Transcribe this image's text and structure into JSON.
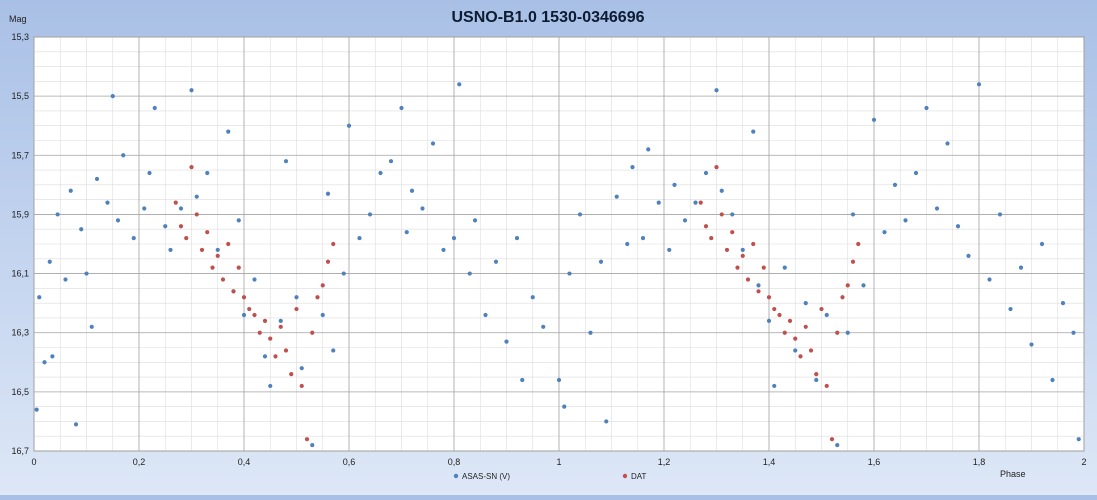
{
  "chart_data": {
    "type": "scatter",
    "title": "USNO-B1.0 1530-0346696",
    "ylabel": "Mag",
    "xlabel": "Phase",
    "xlim": [
      0,
      2
    ],
    "ylim": [
      15.3,
      16.7
    ],
    "y_inverted": true,
    "x_ticks": [
      0,
      0.2,
      0.4,
      0.6,
      0.8,
      1,
      1.2,
      1.4,
      1.6,
      1.8,
      2
    ],
    "x_tick_labels": [
      "0",
      "0,2",
      "0,4",
      "0,6",
      "0,8",
      "1",
      "1,2",
      "1,4",
      "1,6",
      "1,8",
      "2"
    ],
    "y_ticks": [
      15.3,
      15.5,
      15.7,
      15.9,
      16.1,
      16.3,
      16.5,
      16.7
    ],
    "y_tick_labels": [
      "15,3",
      "15,5",
      "15,7",
      "15,9",
      "16,1",
      "16,3",
      "16,5",
      "16,7"
    ],
    "grid": true,
    "legend_position": "bottom",
    "series": [
      {
        "name": "ASAS-SN (V)",
        "color": "#4f81bd",
        "points": [
          [
            0.005,
            16.56
          ],
          [
            0.01,
            16.18
          ],
          [
            0.02,
            16.4
          ],
          [
            0.03,
            16.06
          ],
          [
            0.035,
            16.38
          ],
          [
            0.045,
            15.9
          ],
          [
            0.06,
            16.12
          ],
          [
            0.07,
            15.82
          ],
          [
            0.08,
            16.61
          ],
          [
            0.09,
            15.95
          ],
          [
            0.1,
            16.1
          ],
          [
            0.11,
            16.28
          ],
          [
            0.12,
            15.78
          ],
          [
            0.14,
            15.86
          ],
          [
            0.15,
            15.5
          ],
          [
            0.16,
            15.92
          ],
          [
            0.17,
            15.7
          ],
          [
            0.19,
            15.98
          ],
          [
            0.21,
            15.88
          ],
          [
            0.22,
            15.76
          ],
          [
            0.23,
            15.54
          ],
          [
            0.25,
            15.94
          ],
          [
            0.26,
            16.02
          ],
          [
            0.28,
            15.88
          ],
          [
            0.3,
            15.48
          ],
          [
            0.31,
            15.84
          ],
          [
            0.33,
            15.76
          ],
          [
            0.35,
            16.02
          ],
          [
            0.37,
            15.62
          ],
          [
            0.38,
            16.16
          ],
          [
            0.39,
            15.92
          ],
          [
            0.4,
            16.24
          ],
          [
            0.42,
            16.12
          ],
          [
            0.44,
            16.38
          ],
          [
            0.45,
            16.48
          ],
          [
            0.47,
            16.26
          ],
          [
            0.48,
            15.72
          ],
          [
            0.5,
            16.18
          ],
          [
            0.51,
            16.42
          ],
          [
            0.53,
            16.68
          ],
          [
            0.55,
            16.24
          ],
          [
            0.56,
            15.83
          ],
          [
            0.57,
            16.36
          ],
          [
            0.59,
            16.1
          ],
          [
            0.6,
            15.6
          ],
          [
            0.62,
            15.98
          ],
          [
            0.64,
            15.9
          ],
          [
            0.66,
            15.76
          ],
          [
            0.68,
            15.72
          ],
          [
            0.7,
            15.54
          ],
          [
            0.71,
            15.96
          ],
          [
            0.72,
            15.82
          ],
          [
            0.74,
            15.88
          ],
          [
            0.76,
            15.66
          ],
          [
            0.78,
            16.02
          ],
          [
            0.8,
            15.98
          ],
          [
            0.81,
            15.46
          ],
          [
            0.83,
            16.1
          ],
          [
            0.84,
            15.92
          ],
          [
            0.86,
            16.24
          ],
          [
            0.88,
            16.06
          ],
          [
            0.9,
            16.33
          ],
          [
            0.92,
            15.98
          ],
          [
            0.93,
            16.46
          ],
          [
            0.95,
            16.18
          ],
          [
            0.97,
            16.28
          ],
          [
            1.0,
            16.46
          ],
          [
            1.01,
            16.55
          ],
          [
            1.02,
            16.1
          ],
          [
            1.04,
            15.9
          ],
          [
            1.06,
            16.3
          ],
          [
            1.08,
            16.06
          ],
          [
            1.09,
            16.6
          ],
          [
            1.11,
            15.84
          ],
          [
            1.13,
            16.0
          ],
          [
            1.14,
            15.74
          ],
          [
            1.16,
            15.98
          ],
          [
            1.17,
            15.68
          ],
          [
            1.19,
            15.86
          ],
          [
            1.21,
            16.02
          ],
          [
            1.22,
            15.8
          ],
          [
            1.24,
            15.92
          ],
          [
            1.26,
            15.86
          ],
          [
            1.28,
            15.76
          ],
          [
            1.3,
            15.48
          ],
          [
            1.31,
            15.82
          ],
          [
            1.33,
            15.9
          ],
          [
            1.35,
            16.02
          ],
          [
            1.37,
            15.62
          ],
          [
            1.38,
            16.14
          ],
          [
            1.4,
            16.26
          ],
          [
            1.41,
            16.48
          ],
          [
            1.43,
            16.08
          ],
          [
            1.45,
            16.36
          ],
          [
            1.47,
            16.2
          ],
          [
            1.49,
            16.46
          ],
          [
            1.51,
            16.24
          ],
          [
            1.53,
            16.68
          ],
          [
            1.55,
            16.3
          ],
          [
            1.56,
            15.9
          ],
          [
            1.58,
            16.14
          ],
          [
            1.6,
            15.58
          ],
          [
            1.62,
            15.96
          ],
          [
            1.64,
            15.8
          ],
          [
            1.66,
            15.92
          ],
          [
            1.68,
            15.76
          ],
          [
            1.7,
            15.54
          ],
          [
            1.72,
            15.88
          ],
          [
            1.74,
            15.66
          ],
          [
            1.76,
            15.94
          ],
          [
            1.78,
            16.04
          ],
          [
            1.8,
            15.46
          ],
          [
            1.82,
            16.12
          ],
          [
            1.84,
            15.9
          ],
          [
            1.86,
            16.22
          ],
          [
            1.88,
            16.08
          ],
          [
            1.9,
            16.34
          ],
          [
            1.92,
            16.0
          ],
          [
            1.94,
            16.46
          ],
          [
            1.96,
            16.2
          ],
          [
            1.98,
            16.3
          ],
          [
            1.99,
            16.66
          ]
        ]
      },
      {
        "name": "DAT",
        "color": "#c0504d",
        "points": [
          [
            0.27,
            15.86
          ],
          [
            0.28,
            15.94
          ],
          [
            0.29,
            15.98
          ],
          [
            0.3,
            15.74
          ],
          [
            0.31,
            15.9
          ],
          [
            0.32,
            16.02
          ],
          [
            0.33,
            15.96
          ],
          [
            0.34,
            16.08
          ],
          [
            0.35,
            16.04
          ],
          [
            0.36,
            16.12
          ],
          [
            0.37,
            16.0
          ],
          [
            0.38,
            16.16
          ],
          [
            0.39,
            16.08
          ],
          [
            0.4,
            16.18
          ],
          [
            0.41,
            16.22
          ],
          [
            0.42,
            16.24
          ],
          [
            0.43,
            16.3
          ],
          [
            0.44,
            16.26
          ],
          [
            0.45,
            16.32
          ],
          [
            0.46,
            16.38
          ],
          [
            0.47,
            16.28
          ],
          [
            0.48,
            16.36
          ],
          [
            0.49,
            16.44
          ],
          [
            0.5,
            16.22
          ],
          [
            0.51,
            16.48
          ],
          [
            0.52,
            16.66
          ],
          [
            0.53,
            16.3
          ],
          [
            0.54,
            16.18
          ],
          [
            0.55,
            16.14
          ],
          [
            0.56,
            16.06
          ],
          [
            0.57,
            16.0
          ],
          [
            1.27,
            15.86
          ],
          [
            1.28,
            15.94
          ],
          [
            1.29,
            15.98
          ],
          [
            1.3,
            15.74
          ],
          [
            1.31,
            15.9
          ],
          [
            1.32,
            16.02
          ],
          [
            1.33,
            15.96
          ],
          [
            1.34,
            16.08
          ],
          [
            1.35,
            16.04
          ],
          [
            1.36,
            16.12
          ],
          [
            1.37,
            16.0
          ],
          [
            1.38,
            16.16
          ],
          [
            1.39,
            16.08
          ],
          [
            1.4,
            16.18
          ],
          [
            1.41,
            16.22
          ],
          [
            1.42,
            16.24
          ],
          [
            1.43,
            16.3
          ],
          [
            1.44,
            16.26
          ],
          [
            1.45,
            16.32
          ],
          [
            1.46,
            16.38
          ],
          [
            1.47,
            16.28
          ],
          [
            1.48,
            16.36
          ],
          [
            1.49,
            16.44
          ],
          [
            1.5,
            16.22
          ],
          [
            1.51,
            16.48
          ],
          [
            1.52,
            16.66
          ],
          [
            1.53,
            16.3
          ],
          [
            1.54,
            16.18
          ],
          [
            1.55,
            16.14
          ],
          [
            1.56,
            16.06
          ],
          [
            1.57,
            16.0
          ]
        ]
      }
    ]
  }
}
